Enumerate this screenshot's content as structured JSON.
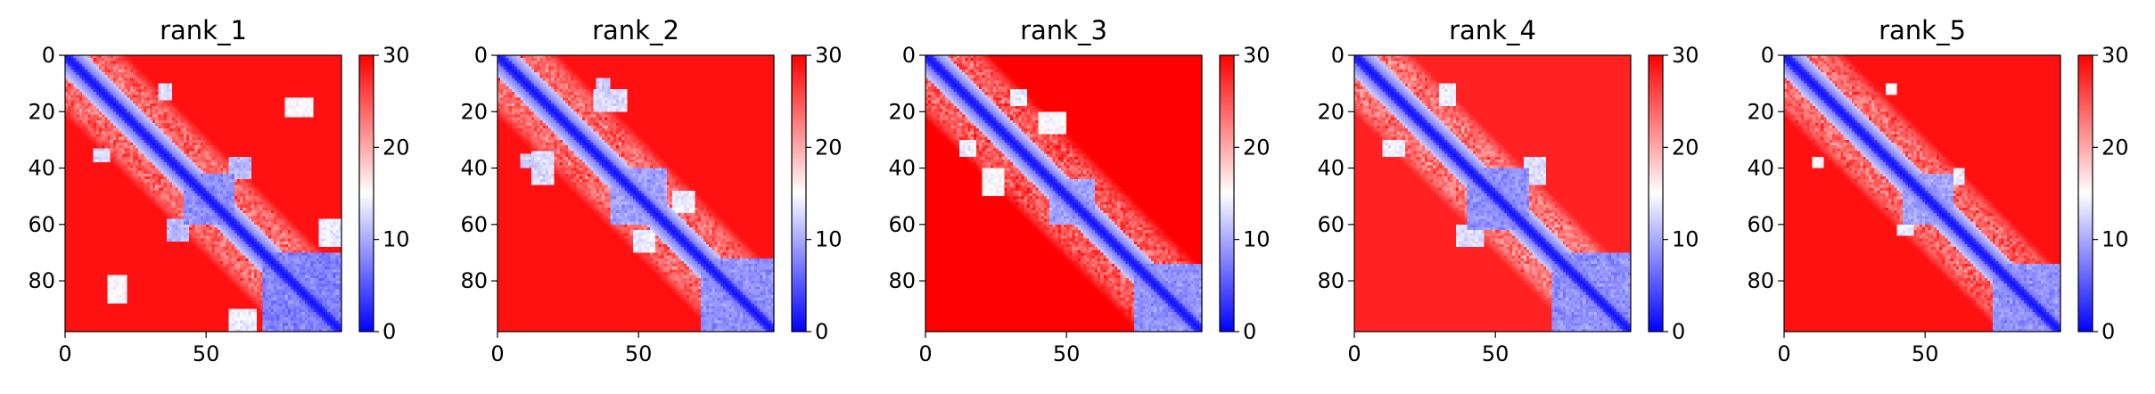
{
  "chart_data": [
    {
      "type": "heatmap",
      "title": "rank_1",
      "matrix_size": 98,
      "x_ticks": [
        "0",
        "50"
      ],
      "y_ticks": [
        "0",
        "20",
        "40",
        "60",
        "80"
      ],
      "x_tick_values": [
        0,
        50
      ],
      "y_tick_values": [
        0,
        20,
        40,
        60,
        80
      ],
      "xlim": [
        0,
        98
      ],
      "ylim": [
        98,
        0
      ],
      "colorbar": {
        "range": [
          0,
          30
        ],
        "ticks": [
          "0",
          "10",
          "20",
          "30"
        ],
        "tick_values": [
          0,
          10,
          20,
          30
        ],
        "colormap": "bwr",
        "colors": [
          "#0000ff",
          "#ffffff",
          "#ff0000"
        ]
      },
      "diagonal_low_values_blocks": [
        {
          "start": 0,
          "end": 98,
          "band_width": 4,
          "value": 2
        },
        {
          "start": 42,
          "end": 60,
          "value": 6
        },
        {
          "start": 70,
          "end": 98,
          "value": 5
        }
      ],
      "off_diagonal_contacts": [
        {
          "rows": [
            10,
            16
          ],
          "cols": [
            33,
            38
          ],
          "value": 11
        },
        {
          "rows": [
            33,
            38
          ],
          "cols": [
            10,
            16
          ],
          "value": 11
        },
        {
          "rows": [
            36,
            44
          ],
          "cols": [
            58,
            66
          ],
          "value": 9
        },
        {
          "rows": [
            58,
            66
          ],
          "cols": [
            36,
            44
          ],
          "value": 9
        },
        {
          "rows": [
            58,
            68
          ],
          "cols": [
            90,
            98
          ],
          "value": 12
        },
        {
          "rows": [
            90,
            98
          ],
          "cols": [
            58,
            68
          ],
          "value": 12
        },
        {
          "rows": [
            78,
            88
          ],
          "cols": [
            15,
            22
          ],
          "value": 13
        },
        {
          "rows": [
            15,
            22
          ],
          "cols": [
            78,
            88
          ],
          "value": 13
        }
      ],
      "background_value": 25
    },
    {
      "type": "heatmap",
      "title": "rank_2",
      "matrix_size": 98,
      "x_ticks": [
        "0",
        "50"
      ],
      "y_ticks": [
        "0",
        "20",
        "40",
        "60",
        "80"
      ],
      "x_tick_values": [
        0,
        50
      ],
      "y_tick_values": [
        0,
        20,
        40,
        60,
        80
      ],
      "xlim": [
        0,
        98
      ],
      "ylim": [
        98,
        0
      ],
      "colorbar": {
        "range": [
          0,
          30
        ],
        "ticks": [
          "0",
          "10",
          "20",
          "30"
        ],
        "tick_values": [
          0,
          10,
          20,
          30
        ],
        "colormap": "bwr",
        "colors": [
          "#0000ff",
          "#ffffff",
          "#ff0000"
        ]
      },
      "diagonal_low_values_blocks": [
        {
          "start": 0,
          "end": 98,
          "band_width": 4,
          "value": 2
        },
        {
          "start": 40,
          "end": 60,
          "value": 7
        },
        {
          "start": 72,
          "end": 98,
          "value": 6
        }
      ],
      "off_diagonal_contacts": [
        {
          "rows": [
            8,
            14
          ],
          "cols": [
            35,
            40
          ],
          "value": 10
        },
        {
          "rows": [
            35,
            40
          ],
          "cols": [
            8,
            14
          ],
          "value": 10
        },
        {
          "rows": [
            34,
            46
          ],
          "cols": [
            12,
            20
          ],
          "value": 11
        },
        {
          "rows": [
            12,
            20
          ],
          "cols": [
            34,
            46
          ],
          "value": 11
        },
        {
          "rows": [
            48,
            56
          ],
          "cols": [
            62,
            70
          ],
          "value": 12
        },
        {
          "rows": [
            62,
            70
          ],
          "cols": [
            48,
            56
          ],
          "value": 12
        }
      ],
      "background_value": 25
    },
    {
      "type": "heatmap",
      "title": "rank_3",
      "matrix_size": 98,
      "x_ticks": [
        "0",
        "50"
      ],
      "y_ticks": [
        "0",
        "20",
        "40",
        "60",
        "80"
      ],
      "x_tick_values": [
        0,
        50
      ],
      "y_tick_values": [
        0,
        20,
        40,
        60,
        80
      ],
      "xlim": [
        0,
        98
      ],
      "ylim": [
        98,
        0
      ],
      "colorbar": {
        "range": [
          0,
          30
        ],
        "ticks": [
          "0",
          "10",
          "20",
          "30"
        ],
        "tick_values": [
          0,
          10,
          20,
          30
        ],
        "colormap": "bwr",
        "colors": [
          "#0000ff",
          "#ffffff",
          "#ff0000"
        ]
      },
      "diagonal_low_values_blocks": [
        {
          "start": 0,
          "end": 98,
          "band_width": 4,
          "value": 2
        },
        {
          "start": 44,
          "end": 60,
          "value": 7
        },
        {
          "start": 74,
          "end": 98,
          "value": 6
        }
      ],
      "off_diagonal_contacts": [
        {
          "rows": [
            12,
            18
          ],
          "cols": [
            30,
            36
          ],
          "value": 12
        },
        {
          "rows": [
            30,
            36
          ],
          "cols": [
            12,
            18
          ],
          "value": 12
        },
        {
          "rows": [
            40,
            50
          ],
          "cols": [
            20,
            28
          ],
          "value": 13
        },
        {
          "rows": [
            20,
            28
          ],
          "cols": [
            40,
            50
          ],
          "value": 13
        }
      ],
      "background_value": 26
    },
    {
      "type": "heatmap",
      "title": "rank_4",
      "matrix_size": 98,
      "x_ticks": [
        "0",
        "50"
      ],
      "y_ticks": [
        "0",
        "20",
        "40",
        "60",
        "80"
      ],
      "x_tick_values": [
        0,
        50
      ],
      "y_tick_values": [
        0,
        20,
        40,
        60,
        80
      ],
      "xlim": [
        0,
        98
      ],
      "ylim": [
        98,
        0
      ],
      "colorbar": {
        "range": [
          0,
          30
        ],
        "ticks": [
          "0",
          "10",
          "20",
          "30"
        ],
        "tick_values": [
          0,
          10,
          20,
          30
        ],
        "colormap": "bwr",
        "colors": [
          "#0000ff",
          "#ffffff",
          "#ff0000"
        ]
      },
      "diagonal_low_values_blocks": [
        {
          "start": 0,
          "end": 98,
          "band_width": 4,
          "value": 2
        },
        {
          "start": 40,
          "end": 62,
          "value": 6
        },
        {
          "start": 70,
          "end": 98,
          "value": 6
        }
      ],
      "off_diagonal_contacts": [
        {
          "rows": [
            30,
            36
          ],
          "cols": [
            10,
            18
          ],
          "value": 12
        },
        {
          "rows": [
            10,
            18
          ],
          "cols": [
            30,
            36
          ],
          "value": 12
        },
        {
          "rows": [
            36,
            46
          ],
          "cols": [
            60,
            68
          ],
          "value": 11
        },
        {
          "rows": [
            60,
            68
          ],
          "cols": [
            36,
            46
          ],
          "value": 11
        }
      ],
      "background_value": 24
    },
    {
      "type": "heatmap",
      "title": "rank_5",
      "matrix_size": 98,
      "x_ticks": [
        "0",
        "50"
      ],
      "y_ticks": [
        "0",
        "20",
        "40",
        "60",
        "80"
      ],
      "x_tick_values": [
        0,
        50
      ],
      "y_tick_values": [
        0,
        20,
        40,
        60,
        80
      ],
      "xlim": [
        0,
        98
      ],
      "ylim": [
        98,
        0
      ],
      "colorbar": {
        "range": [
          0,
          30
        ],
        "ticks": [
          "0",
          "10",
          "20",
          "30"
        ],
        "tick_values": [
          0,
          10,
          20,
          30
        ],
        "colormap": "bwr",
        "colors": [
          "#0000ff",
          "#ffffff",
          "#ff0000"
        ]
      },
      "diagonal_low_values_blocks": [
        {
          "start": 0,
          "end": 98,
          "band_width": 4,
          "value": 2
        },
        {
          "start": 42,
          "end": 60,
          "value": 7
        },
        {
          "start": 74,
          "end": 98,
          "value": 6
        }
      ],
      "off_diagonal_contacts": [
        {
          "rows": [
            10,
            14
          ],
          "cols": [
            36,
            40
          ],
          "value": 13
        },
        {
          "rows": [
            36,
            40
          ],
          "cols": [
            10,
            14
          ],
          "value": 13
        },
        {
          "rows": [
            40,
            46
          ],
          "cols": [
            60,
            64
          ],
          "value": 12
        },
        {
          "rows": [
            60,
            64
          ],
          "cols": [
            40,
            46
          ],
          "value": 12
        }
      ],
      "background_value": 25
    }
  ]
}
